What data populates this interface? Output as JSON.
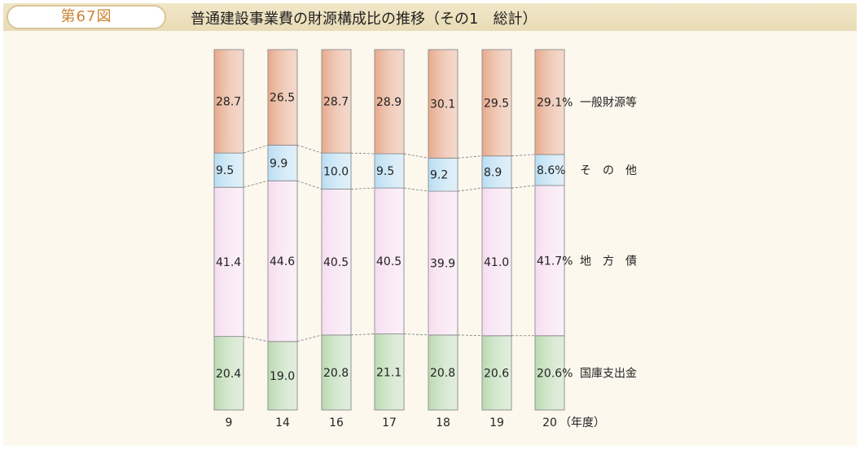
{
  "header": {
    "figure_number": "第67図",
    "title": "普通建設事業費の財源構成比の推移（その1　総計）"
  },
  "colors": {
    "header_bg": "#ece0bd",
    "tab_accent": "#c98434",
    "general_revenue": "#e6a88a",
    "other": "#b7dcf2",
    "local_bonds": "#f5dcef",
    "national_subsidy": "#b9d9b0"
  },
  "chart_data": {
    "type": "bar",
    "stacked": true,
    "normalized_percent": true,
    "categories": [
      "9",
      "14",
      "16",
      "17",
      "18",
      "19",
      "20"
    ],
    "x_unit": "（年度）",
    "series": [
      {
        "name": "国庫支出金",
        "values": [
          20.4,
          19.0,
          20.8,
          21.1,
          20.8,
          20.6,
          20.6
        ],
        "labels": [
          "20.4",
          "19.0",
          "20.8",
          "21.1",
          "20.8",
          "20.6",
          "20.6%"
        ]
      },
      {
        "name": "地　方　債",
        "values": [
          41.4,
          44.6,
          40.5,
          40.5,
          39.9,
          41.0,
          41.7
        ],
        "labels": [
          "41.4",
          "44.6",
          "40.5",
          "40.5",
          "39.9",
          "41.0",
          "41.7%"
        ]
      },
      {
        "name": "そ　の　他",
        "values": [
          9.5,
          9.9,
          10.0,
          9.5,
          9.2,
          8.9,
          8.6
        ],
        "labels": [
          "9.5",
          "9.9",
          "10.0",
          "9.5",
          "9.2",
          "8.9",
          "8.6%"
        ]
      },
      {
        "name": "一般財源等",
        "values": [
          28.7,
          26.5,
          28.7,
          28.9,
          30.1,
          29.5,
          29.1
        ],
        "labels": [
          "28.7",
          "26.5",
          "28.7",
          "28.9",
          "30.1",
          "29.5",
          "29.1%"
        ]
      }
    ],
    "grid": false,
    "legend": "right"
  }
}
